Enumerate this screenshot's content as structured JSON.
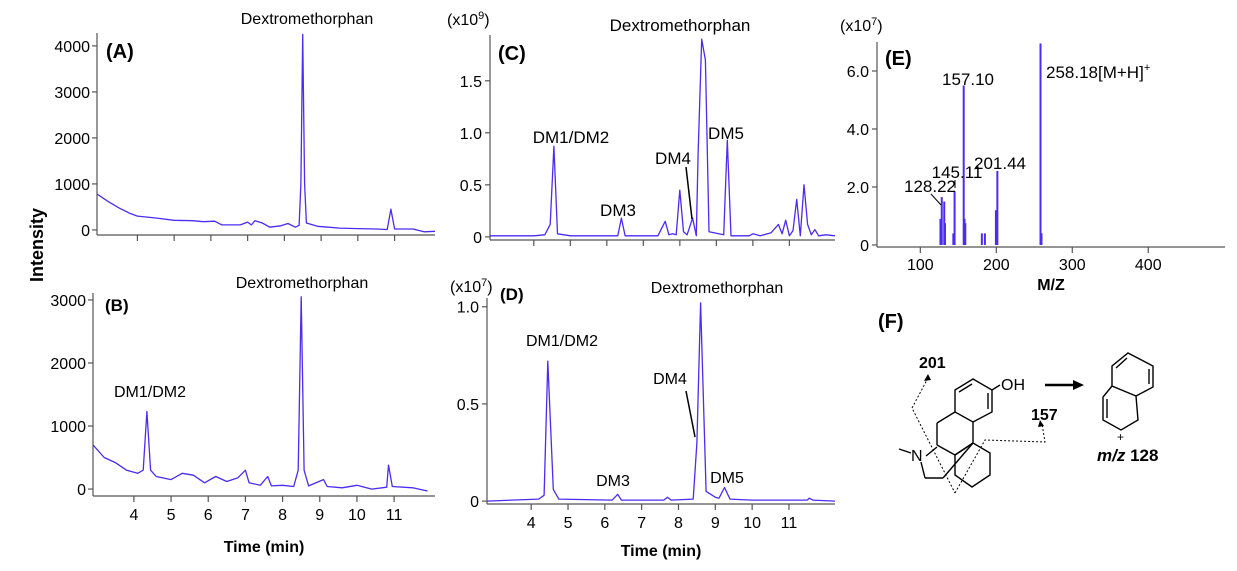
{
  "colors": {
    "trace": "#4a2cf2",
    "axis": "#555555",
    "text": "#000000"
  },
  "shared": {
    "ylabel": "Intensity",
    "xlabel": "Time (min)",
    "ms_xlabel": "M/Z"
  },
  "chart_data": [
    {
      "panel": "(A)",
      "type": "line",
      "xlim": [
        2.9,
        12.1
      ],
      "ylim": [
        -110,
        4280
      ],
      "xticks": [
        4,
        5,
        6,
        7,
        8,
        9,
        10,
        11
      ],
      "xtick_labels_shown": false,
      "yticks": [
        0,
        1000,
        2000,
        3000,
        4000
      ],
      "ytick_labels": [
        "0",
        "1000",
        "2000",
        "3000",
        "4000"
      ],
      "annotations": [
        {
          "text": "Dextromethorphan",
          "x": 8.5
        }
      ],
      "points": [
        [
          2.9,
          780
        ],
        [
          3.2,
          620
        ],
        [
          3.5,
          480
        ],
        [
          3.8,
          360
        ],
        [
          4.0,
          300
        ],
        [
          4.5,
          260
        ],
        [
          5.0,
          210
        ],
        [
          5.5,
          200
        ],
        [
          5.8,
          180
        ],
        [
          6.1,
          190
        ],
        [
          6.3,
          110
        ],
        [
          6.8,
          110
        ],
        [
          7.0,
          170
        ],
        [
          7.1,
          110
        ],
        [
          7.2,
          200
        ],
        [
          7.4,
          150
        ],
        [
          7.6,
          60
        ],
        [
          7.9,
          90
        ],
        [
          8.1,
          140
        ],
        [
          8.3,
          60
        ],
        [
          8.4,
          100
        ],
        [
          8.45,
          1000
        ],
        [
          8.5,
          4250
        ],
        [
          8.55,
          1000
        ],
        [
          8.6,
          150
        ],
        [
          8.9,
          80
        ],
        [
          9.2,
          60
        ],
        [
          9.5,
          40
        ],
        [
          10.0,
          30
        ],
        [
          10.5,
          20
        ],
        [
          10.8,
          10
        ],
        [
          10.9,
          450
        ],
        [
          11.0,
          20
        ],
        [
          11.5,
          20
        ],
        [
          11.8,
          -40
        ],
        [
          12.1,
          -30
        ]
      ]
    },
    {
      "panel": "(B)",
      "type": "line",
      "xlim": [
        2.9,
        12.1
      ],
      "ylim": [
        -110,
        3110
      ],
      "xticks": [
        4,
        5,
        6,
        7,
        8,
        9,
        10,
        11
      ],
      "xtick_labels": [
        "4",
        "5",
        "6",
        "7",
        "8",
        "9",
        "10",
        "11"
      ],
      "xlabel": "Time (min)",
      "yticks": [
        0,
        1000,
        2000,
        3000
      ],
      "ytick_labels": [
        "0",
        "1000",
        "2000",
        "3000"
      ],
      "annotations": [
        {
          "text": "Dextromethorphan",
          "x": 8.5
        },
        {
          "text": "DM1/DM2",
          "x": 4.35
        }
      ],
      "points": [
        [
          2.9,
          700
        ],
        [
          3.2,
          500
        ],
        [
          3.5,
          420
        ],
        [
          3.8,
          300
        ],
        [
          4.1,
          250
        ],
        [
          4.25,
          300
        ],
        [
          4.35,
          1230
        ],
        [
          4.45,
          300
        ],
        [
          4.6,
          200
        ],
        [
          5.0,
          150
        ],
        [
          5.3,
          250
        ],
        [
          5.6,
          220
        ],
        [
          5.9,
          100
        ],
        [
          6.2,
          200
        ],
        [
          6.5,
          120
        ],
        [
          6.8,
          180
        ],
        [
          7.0,
          300
        ],
        [
          7.1,
          100
        ],
        [
          7.4,
          60
        ],
        [
          7.6,
          200
        ],
        [
          7.7,
          50
        ],
        [
          8.0,
          60
        ],
        [
          8.3,
          40
        ],
        [
          8.42,
          300
        ],
        [
          8.5,
          3050
        ],
        [
          8.58,
          300
        ],
        [
          8.7,
          50
        ],
        [
          9.1,
          150
        ],
        [
          9.2,
          40
        ],
        [
          9.6,
          20
        ],
        [
          10.0,
          60
        ],
        [
          10.4,
          0
        ],
        [
          10.8,
          30
        ],
        [
          10.85,
          380
        ],
        [
          10.95,
          40
        ],
        [
          11.5,
          20
        ],
        [
          11.9,
          -30
        ]
      ]
    },
    {
      "panel": "(C)",
      "type": "line",
      "xlim": [
        2.8,
        12.25
      ],
      "ylim": [
        -0.03,
        1.94
      ],
      "scale_base": "(x10",
      "scale_exp": "9",
      "scale_close": ")",
      "xticks": [
        4,
        5,
        6,
        7,
        8,
        9,
        10,
        11
      ],
      "xtick_labels_shown": false,
      "yticks": [
        0,
        0.5,
        1.0,
        1.5
      ],
      "ytick_labels": [
        "0",
        "0.5",
        "1.0",
        "1.5"
      ],
      "annotations": [
        {
          "text": "Dextromethorphan",
          "x": 8.6
        },
        {
          "text": "DM1/DM2",
          "x": 4.55
        },
        {
          "text": "DM3",
          "x": 6.4
        },
        {
          "text": "DM4",
          "x": 8.35
        },
        {
          "text": "DM5",
          "x": 9.3
        }
      ],
      "points": [
        [
          2.8,
          0.01
        ],
        [
          4.0,
          0.01
        ],
        [
          4.3,
          0.02
        ],
        [
          4.45,
          0.12
        ],
        [
          4.55,
          0.87
        ],
        [
          4.65,
          0.03
        ],
        [
          5.0,
          0.01
        ],
        [
          6.3,
          0.01
        ],
        [
          6.4,
          0.18
        ],
        [
          6.5,
          0.01
        ],
        [
          7.4,
          0.01
        ],
        [
          7.6,
          0.15
        ],
        [
          7.7,
          0.02
        ],
        [
          7.8,
          0.03
        ],
        [
          7.9,
          0.02
        ],
        [
          8.0,
          0.45
        ],
        [
          8.1,
          0.05
        ],
        [
          8.2,
          0.02
        ],
        [
          8.35,
          0.18
        ],
        [
          8.45,
          0.01
        ],
        [
          8.5,
          0.8
        ],
        [
          8.6,
          1.9
        ],
        [
          8.7,
          1.7
        ],
        [
          8.8,
          0.05
        ],
        [
          9.2,
          0.02
        ],
        [
          9.3,
          0.93
        ],
        [
          9.4,
          0.01
        ],
        [
          9.9,
          0.01
        ],
        [
          10.0,
          0.03
        ],
        [
          10.2,
          0.01
        ],
        [
          10.5,
          0.04
        ],
        [
          10.7,
          0.12
        ],
        [
          10.8,
          0.03
        ],
        [
          10.9,
          0.16
        ],
        [
          11.0,
          0.01
        ],
        [
          11.1,
          0.06
        ],
        [
          11.2,
          0.36
        ],
        [
          11.3,
          0.01
        ],
        [
          11.4,
          0.5
        ],
        [
          11.5,
          0.12
        ],
        [
          11.6,
          0.02
        ],
        [
          11.7,
          0.07
        ],
        [
          11.8,
          0.01
        ],
        [
          12.0,
          0.02
        ],
        [
          12.25,
          0.01
        ]
      ]
    },
    {
      "panel": "(D)",
      "type": "line",
      "xlim": [
        2.8,
        12.25
      ],
      "ylim": [
        -0.015,
        1.045
      ],
      "scale_base": "(x10",
      "scale_exp": "7",
      "scale_close": ")",
      "xticks": [
        4,
        5,
        6,
        7,
        8,
        9,
        10,
        11
      ],
      "xtick_labels": [
        "4",
        "5",
        "6",
        "7",
        "8",
        "9",
        "10",
        "11"
      ],
      "xlabel": "Time (min)",
      "yticks": [
        0,
        0.5,
        1.0
      ],
      "ytick_labels": [
        "0",
        "0.5",
        "1.0"
      ],
      "annotations": [
        {
          "text": "Dextromethorphan",
          "x": 8.6
        },
        {
          "text": "DM1/DM2",
          "x": 4.45
        },
        {
          "text": "DM3",
          "x": 6.35
        },
        {
          "text": "DM4",
          "x": 8.5
        },
        {
          "text": "DM5",
          "x": 9.25
        }
      ],
      "points": [
        [
          2.8,
          0
        ],
        [
          4.2,
          0.01
        ],
        [
          4.35,
          0.03
        ],
        [
          4.45,
          0.72
        ],
        [
          4.6,
          0.06
        ],
        [
          4.75,
          0.01
        ],
        [
          6.2,
          0.005
        ],
        [
          6.35,
          0.035
        ],
        [
          6.45,
          0.005
        ],
        [
          7.6,
          0.005
        ],
        [
          7.7,
          0.02
        ],
        [
          7.8,
          0.005
        ],
        [
          8.4,
          0.01
        ],
        [
          8.5,
          0.3
        ],
        [
          8.6,
          1.02
        ],
        [
          8.75,
          0.05
        ],
        [
          9.0,
          0.02
        ],
        [
          9.1,
          0.015
        ],
        [
          9.25,
          0.07
        ],
        [
          9.4,
          0.01
        ],
        [
          10.0,
          0.005
        ],
        [
          11.5,
          0.005
        ],
        [
          11.55,
          0.015
        ],
        [
          11.65,
          0.005
        ],
        [
          12.25,
          0
        ]
      ]
    },
    {
      "panel": "(E)",
      "type": "bar",
      "xlim": [
        43,
        501
      ],
      "ylim": [
        -0.07,
        7.0
      ],
      "scale_base": "(x10",
      "scale_exp": "7",
      "scale_close": ")",
      "xlabel": "M/Z",
      "xticks": [
        100,
        200,
        300,
        400
      ],
      "xtick_labels": [
        "100",
        "200",
        "300",
        "400"
      ],
      "yticks": [
        0,
        2.0,
        4.0,
        6.0
      ],
      "ytick_labels": [
        "0",
        "2.0",
        "4.0",
        "6.0"
      ],
      "annotations": [
        {
          "text": "258.18[M+H]",
          "sup": "+",
          "x": 258.18
        },
        {
          "text": "157.10",
          "x": 157.1
        },
        {
          "text": "145.11",
          "x": 145.11
        },
        {
          "text": "128.22",
          "x": 128.22
        },
        {
          "text": "201.44",
          "x": 201.44
        }
      ],
      "peaks": [
        [
          126.5,
          0.9
        ],
        [
          128.2,
          1.65
        ],
        [
          131.5,
          1.5
        ],
        [
          132.5,
          0.75
        ],
        [
          143.5,
          0.4
        ],
        [
          145.1,
          1.85
        ],
        [
          157.1,
          5.5
        ],
        [
          158.2,
          0.9
        ],
        [
          159.2,
          0.75
        ],
        [
          181,
          0.4
        ],
        [
          185,
          0.4
        ],
        [
          199.5,
          1.2
        ],
        [
          201.4,
          2.55
        ],
        [
          258.2,
          6.95
        ],
        [
          259.5,
          0.4
        ]
      ]
    }
  ],
  "structure": {
    "panel": "(F)",
    "fragment_201": "201",
    "fragment_157": "157",
    "oh_label": "OH",
    "n_label": "N",
    "plus": "+",
    "product_mz_prefix": "m/z",
    "product_mz_value": "128"
  }
}
